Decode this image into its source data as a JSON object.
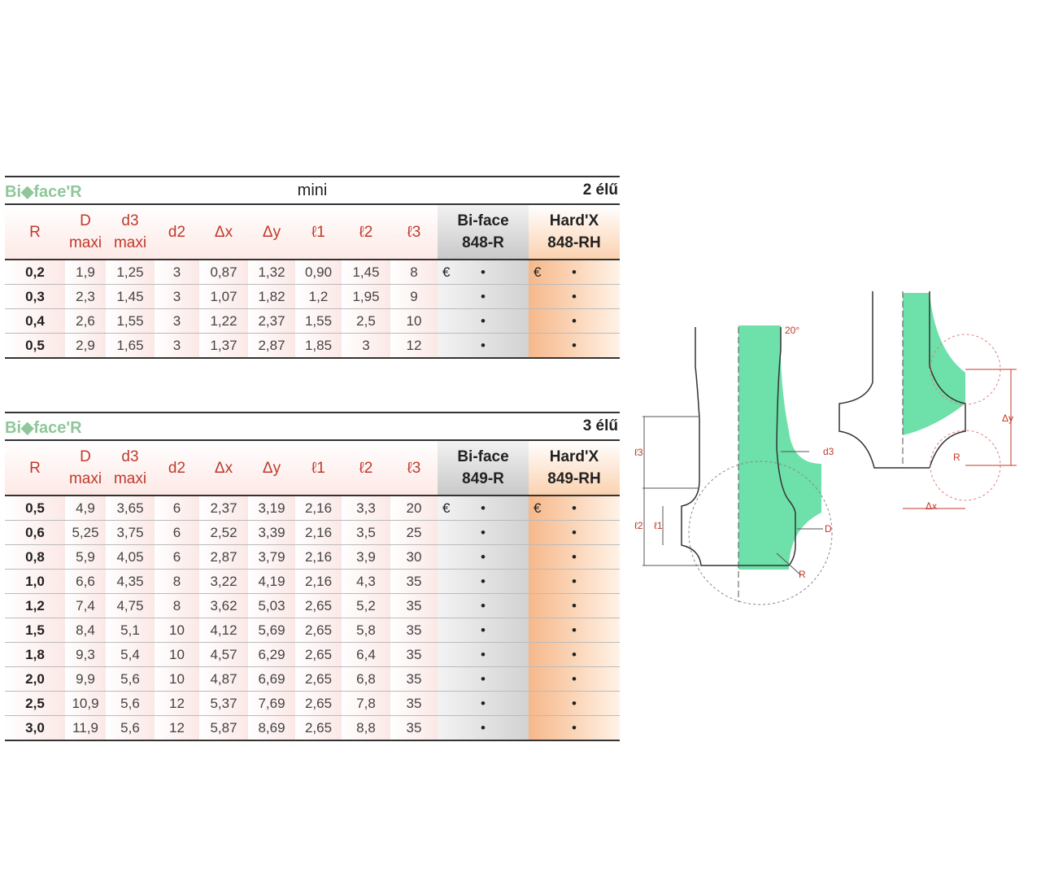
{
  "logo": "Bi◆face'R",
  "table1": {
    "title": "mini",
    "edges": "2 élű",
    "header": [
      [
        "R"
      ],
      [
        "D",
        "maxi"
      ],
      [
        "d3",
        "maxi"
      ],
      [
        "d2"
      ],
      [
        "Δx"
      ],
      [
        "Δy"
      ],
      [
        "ℓ1"
      ],
      [
        "ℓ2"
      ],
      [
        "ℓ3"
      ],
      [
        "Bi-face",
        "848-R"
      ],
      [
        "Hard'X",
        "848-RH"
      ]
    ],
    "price_marks": [
      "€",
      "€"
    ],
    "rows": [
      [
        "0,2",
        "1,9",
        "1,25",
        "3",
        "0,87",
        "1,32",
        "0,90",
        "1,45",
        "8",
        "•",
        "•"
      ],
      [
        "0,3",
        "2,3",
        "1,45",
        "3",
        "1,07",
        "1,82",
        "1,2",
        "1,95",
        "9",
        "•",
        "•"
      ],
      [
        "0,4",
        "2,6",
        "1,55",
        "3",
        "1,22",
        "2,37",
        "1,55",
        "2,5",
        "10",
        "•",
        "•"
      ],
      [
        "0,5",
        "2,9",
        "1,65",
        "3",
        "1,37",
        "2,87",
        "1,85",
        "3",
        "12",
        "•",
        "•"
      ]
    ]
  },
  "table2": {
    "edges": "3 élű",
    "header": [
      [
        "R"
      ],
      [
        "D",
        "maxi"
      ],
      [
        "d3",
        "maxi"
      ],
      [
        "d2"
      ],
      [
        "Δx"
      ],
      [
        "Δy"
      ],
      [
        "ℓ1"
      ],
      [
        "ℓ2"
      ],
      [
        "ℓ3"
      ],
      [
        "Bi-face",
        "849-R"
      ],
      [
        "Hard'X",
        "849-RH"
      ]
    ],
    "price_marks": [
      "€",
      "€"
    ],
    "rows": [
      [
        "0,5",
        "4,9",
        "3,65",
        "6",
        "2,37",
        "3,19",
        "2,16",
        "3,3",
        "20",
        "•",
        "•"
      ],
      [
        "0,6",
        "5,25",
        "3,75",
        "6",
        "2,52",
        "3,39",
        "2,16",
        "3,5",
        "25",
        "•",
        "•"
      ],
      [
        "0,8",
        "5,9",
        "4,05",
        "6",
        "2,87",
        "3,79",
        "2,16",
        "3,9",
        "30",
        "•",
        "•"
      ],
      [
        "1,0",
        "6,6",
        "4,35",
        "8",
        "3,22",
        "4,19",
        "2,16",
        "4,3",
        "35",
        "•",
        "•"
      ],
      [
        "1,2",
        "7,4",
        "4,75",
        "8",
        "3,62",
        "5,03",
        "2,65",
        "5,2",
        "35",
        "•",
        "•"
      ],
      [
        "1,5",
        "8,4",
        "5,1",
        "10",
        "4,12",
        "5,69",
        "2,65",
        "5,8",
        "35",
        "•",
        "•"
      ],
      [
        "1,8",
        "9,3",
        "5,4",
        "10",
        "4,57",
        "6,29",
        "2,65",
        "6,4",
        "35",
        "•",
        "•"
      ],
      [
        "2,0",
        "9,9",
        "5,6",
        "10",
        "4,87",
        "6,69",
        "2,65",
        "6,8",
        "35",
        "•",
        "•"
      ],
      [
        "2,5",
        "10,9",
        "5,6",
        "12",
        "5,37",
        "7,69",
        "2,65",
        "7,8",
        "35",
        "•",
        "•"
      ],
      [
        "3,0",
        "11,9",
        "5,6",
        "12",
        "5,87",
        "8,69",
        "2,65",
        "8,8",
        "35",
        "•",
        "•"
      ]
    ]
  },
  "diagram": {
    "angle": "20°",
    "l3": "ℓ3",
    "l2": "ℓ2",
    "l1": "ℓ1",
    "d3": "d3",
    "D": "D",
    "R": "R",
    "dy": "Δy",
    "R2": "R",
    "dx": "Δx"
  }
}
